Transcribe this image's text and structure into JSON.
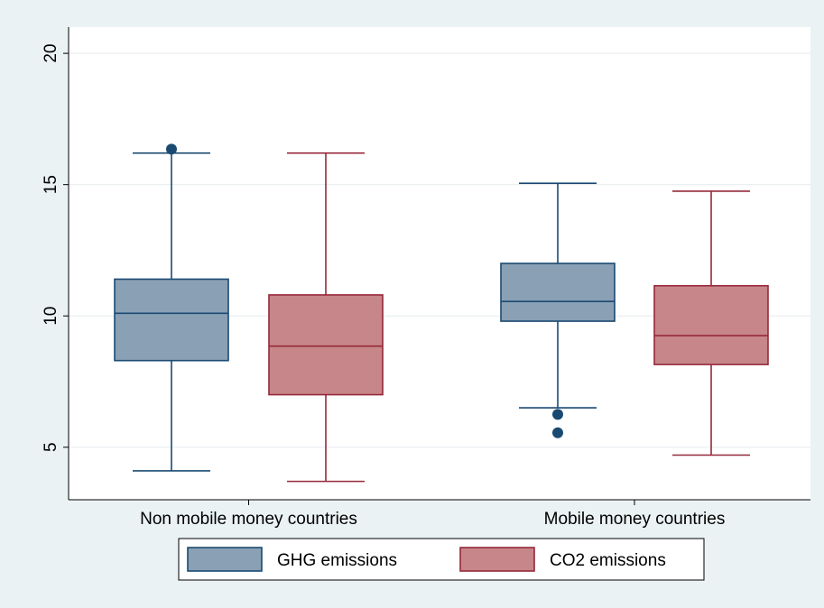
{
  "chart_data": {
    "type": "box",
    "title": "",
    "xlabel": "",
    "ylabel": "",
    "ylim": [
      3,
      21
    ],
    "yticks": [
      5,
      10,
      15,
      20
    ],
    "grid": true,
    "legend_position": "bottom",
    "categories": [
      "Non mobile money countries",
      "Mobile money countries"
    ],
    "series": [
      {
        "name": "GHG emissions",
        "color": "#8aa0b4",
        "stroke": "#1a4a72",
        "boxes": [
          {
            "min": 4.1,
            "q1": 8.3,
            "median": 10.1,
            "q3": 11.4,
            "max": 16.2,
            "outliers": [
              16.35
            ]
          },
          {
            "min": 6.5,
            "q1": 9.8,
            "median": 10.55,
            "q3": 12.0,
            "max": 15.05,
            "outliers": [
              6.25,
              5.55
            ]
          }
        ]
      },
      {
        "name": "CO2 emissions",
        "color": "#c7868a",
        "stroke": "#96283a",
        "boxes": [
          {
            "min": 3.7,
            "q1": 7.0,
            "median": 8.85,
            "q3": 10.8,
            "max": 16.2,
            "outliers": []
          },
          {
            "min": 4.7,
            "q1": 8.15,
            "median": 9.25,
            "q3": 11.15,
            "max": 14.75,
            "outliers": []
          }
        ]
      }
    ]
  }
}
